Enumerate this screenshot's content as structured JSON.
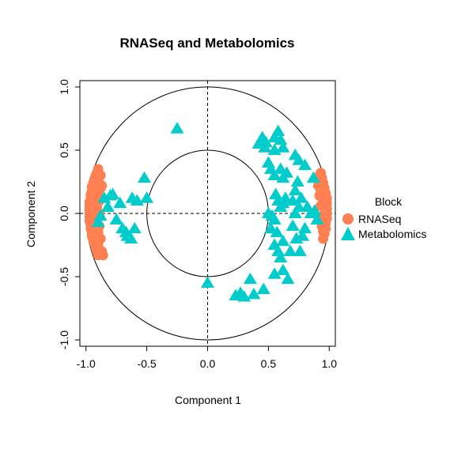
{
  "chart_data": {
    "type": "scatter",
    "title": "RNASeq and Metabolomics",
    "xlabel": "Component  1",
    "ylabel": "Component  2",
    "xlim": [
      -1.05,
      1.05
    ],
    "ylim": [
      -1.05,
      1.05
    ],
    "xticks": [
      "-1.0",
      "-0.5",
      "0.0",
      "0.5",
      "1.0"
    ],
    "yticks": [
      "-1.0",
      "-0.5",
      "0.0",
      "0.5",
      "1.0"
    ],
    "circles": [
      1.0,
      0.5
    ],
    "reference_lines": {
      "x": 0,
      "y": 0,
      "style": "dashed"
    },
    "grid": false,
    "legend": {
      "title": "Block",
      "position": "right"
    },
    "colors": {
      "RNASeq": "#FF7F50",
      "Metabolomics": "#00CCCC"
    },
    "series": [
      {
        "name": "RNASeq",
        "marker": "circle",
        "points": [
          [
            -0.9,
            0.35
          ],
          [
            -0.91,
            0.32
          ],
          [
            -0.92,
            0.3
          ],
          [
            -0.93,
            0.27
          ],
          [
            -0.94,
            0.24
          ],
          [
            -0.95,
            0.21
          ],
          [
            -0.95,
            0.18
          ],
          [
            -0.96,
            0.15
          ],
          [
            -0.96,
            0.12
          ],
          [
            -0.97,
            0.09
          ],
          [
            -0.97,
            0.06
          ],
          [
            -0.97,
            0.03
          ],
          [
            -0.97,
            0.0
          ],
          [
            -0.97,
            -0.03
          ],
          [
            -0.97,
            -0.06
          ],
          [
            -0.96,
            -0.09
          ],
          [
            -0.96,
            -0.12
          ],
          [
            -0.95,
            -0.15
          ],
          [
            -0.95,
            -0.18
          ],
          [
            -0.94,
            -0.21
          ],
          [
            -0.93,
            -0.24
          ],
          [
            -0.92,
            -0.27
          ],
          [
            -0.91,
            -0.3
          ],
          [
            -0.9,
            -0.33
          ],
          [
            -0.88,
            0.3
          ],
          [
            -0.88,
            0.2
          ],
          [
            -0.89,
            0.1
          ],
          [
            -0.89,
            0.0
          ],
          [
            -0.89,
            -0.1
          ],
          [
            -0.88,
            -0.2
          ],
          [
            -0.87,
            -0.3
          ],
          [
            -0.9,
            0.25
          ],
          [
            -0.9,
            0.15
          ],
          [
            -0.91,
            0.05
          ],
          [
            -0.91,
            -0.05
          ],
          [
            -0.9,
            -0.15
          ],
          [
            -0.9,
            -0.25
          ],
          [
            -0.86,
            -0.33
          ],
          [
            -0.87,
            0.22
          ],
          [
            0.93,
            0.32
          ],
          [
            0.94,
            0.28
          ],
          [
            0.95,
            0.24
          ],
          [
            0.96,
            0.2
          ],
          [
            0.97,
            0.16
          ],
          [
            0.98,
            0.12
          ],
          [
            0.98,
            0.08
          ],
          [
            0.98,
            0.04
          ],
          [
            0.98,
            0.0
          ],
          [
            0.98,
            -0.04
          ],
          [
            0.97,
            -0.08
          ],
          [
            0.97,
            -0.12
          ],
          [
            0.96,
            -0.16
          ],
          [
            0.95,
            -0.2
          ],
          [
            0.92,
            0.3
          ],
          [
            0.91,
            0.22
          ],
          [
            0.92,
            0.14
          ],
          [
            0.93,
            0.06
          ],
          [
            0.94,
            -0.02
          ],
          [
            0.94,
            -0.1
          ],
          [
            0.95,
            -0.14
          ],
          [
            0.93,
            0.18
          ],
          [
            0.95,
            0.1
          ]
        ]
      },
      {
        "name": "Metabolomics",
        "marker": "triangle",
        "points": [
          [
            -0.9,
            -0.07
          ],
          [
            -0.88,
            -0.02
          ],
          [
            -0.85,
            0.12
          ],
          [
            -0.8,
            0.14
          ],
          [
            -0.78,
            0.15
          ],
          [
            -0.82,
            0.05
          ],
          [
            -0.75,
            -0.05
          ],
          [
            -0.7,
            -0.12
          ],
          [
            -0.72,
            0.08
          ],
          [
            -0.67,
            -0.15
          ],
          [
            -0.66,
            -0.18
          ],
          [
            -0.63,
            -0.2
          ],
          [
            -0.6,
            -0.12
          ],
          [
            -0.62,
            0.12
          ],
          [
            -0.58,
            0.1
          ],
          [
            -0.52,
            0.28
          ],
          [
            -0.5,
            0.12
          ],
          [
            -0.25,
            0.67
          ],
          [
            0.0,
            -0.55
          ],
          [
            0.23,
            -0.65
          ],
          [
            0.27,
            -0.63
          ],
          [
            0.3,
            -0.66
          ],
          [
            0.35,
            -0.52
          ],
          [
            0.38,
            -0.64
          ],
          [
            0.46,
            -0.6
          ],
          [
            0.42,
            0.55
          ],
          [
            0.45,
            0.6
          ],
          [
            0.47,
            0.52
          ],
          [
            0.48,
            0.56
          ],
          [
            0.5,
            0.4
          ],
          [
            0.52,
            0.35
          ],
          [
            0.55,
            0.6
          ],
          [
            0.58,
            0.65
          ],
          [
            0.6,
            0.58
          ],
          [
            0.62,
            0.52
          ],
          [
            0.55,
            0.3
          ],
          [
            0.6,
            0.35
          ],
          [
            0.62,
            0.28
          ],
          [
            0.65,
            0.32
          ],
          [
            0.56,
            0.15
          ],
          [
            0.58,
            0.1
          ],
          [
            0.6,
            0.05
          ],
          [
            0.62,
            0.08
          ],
          [
            0.64,
            0.12
          ],
          [
            0.5,
            0.0
          ],
          [
            0.53,
            -0.02
          ],
          [
            0.55,
            -0.05
          ],
          [
            0.52,
            -0.12
          ],
          [
            0.57,
            -0.15
          ],
          [
            0.55,
            -0.25
          ],
          [
            0.58,
            -0.3
          ],
          [
            0.62,
            -0.22
          ],
          [
            0.6,
            -0.35
          ],
          [
            0.62,
            -0.45
          ],
          [
            0.55,
            -0.48
          ],
          [
            0.66,
            -0.52
          ],
          [
            0.68,
            -0.3
          ],
          [
            0.7,
            -0.1
          ],
          [
            0.72,
            0.0
          ],
          [
            0.7,
            0.1
          ],
          [
            0.72,
            0.18
          ],
          [
            0.74,
            0.25
          ],
          [
            0.75,
            0.05
          ],
          [
            0.77,
            0.12
          ],
          [
            0.78,
            -0.18
          ],
          [
            0.8,
            -0.12
          ],
          [
            0.76,
            -0.3
          ],
          [
            0.73,
            -0.2
          ],
          [
            0.8,
            0.38
          ],
          [
            0.82,
            0.05
          ],
          [
            0.85,
            0.0
          ],
          [
            0.88,
            0.02
          ],
          [
            0.9,
            -0.05
          ],
          [
            0.87,
            0.28
          ],
          [
            0.72,
            0.46
          ],
          [
            0.75,
            0.42
          ],
          [
            0.55,
            0.5
          ]
        ]
      }
    ]
  }
}
